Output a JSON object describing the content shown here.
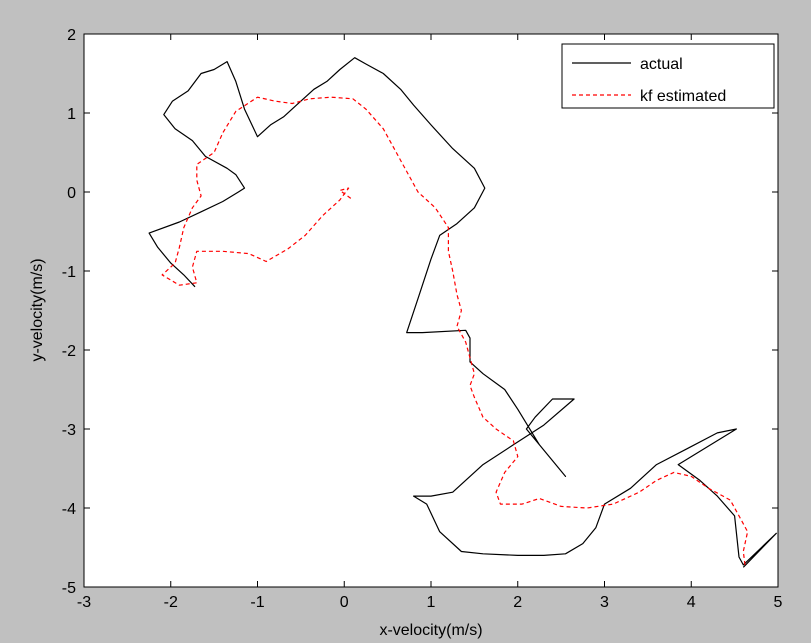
{
  "chart_data": {
    "type": "line",
    "title": "",
    "xlabel": "x-velocity(m/s)",
    "ylabel": "y-velocity(m/s)",
    "xlim": [
      -3,
      5
    ],
    "ylim": [
      -5,
      2
    ],
    "xticks": [
      -3,
      -2,
      -1,
      0,
      1,
      2,
      3,
      4,
      5
    ],
    "yticks": [
      -5,
      -4,
      -3,
      -2,
      -1,
      0,
      1,
      2
    ],
    "xtick_labels": [
      "-3",
      "-2",
      "-1",
      "0",
      "1",
      "2",
      "3",
      "4",
      "5"
    ],
    "ytick_labels": [
      "-5",
      "-4",
      "-3",
      "-2",
      "-1",
      "0",
      "1",
      "2"
    ],
    "grid": false,
    "legend_position": "top-right",
    "background_color": "#c0c0c0",
    "axes_color": "#ffffff",
    "series": [
      {
        "name": "actual",
        "color": "#000000",
        "dash": "solid",
        "points": [
          [
            4.6,
            -4.75
          ],
          [
            4.98,
            -4.32
          ],
          [
            4.6,
            -4.72
          ],
          [
            4.55,
            -4.62
          ],
          [
            4.5,
            -4.1
          ],
          [
            4.3,
            -3.85
          ],
          [
            4.1,
            -3.65
          ],
          [
            3.85,
            -3.45
          ],
          [
            4.52,
            -3.0
          ],
          [
            4.3,
            -3.05
          ],
          [
            3.95,
            -3.25
          ],
          [
            3.6,
            -3.45
          ],
          [
            3.3,
            -3.75
          ],
          [
            3.0,
            -3.95
          ],
          [
            2.9,
            -4.25
          ],
          [
            2.75,
            -4.45
          ],
          [
            2.55,
            -4.58
          ],
          [
            2.3,
            -4.6
          ],
          [
            2.0,
            -4.6
          ],
          [
            1.6,
            -4.58
          ],
          [
            1.35,
            -4.55
          ],
          [
            1.1,
            -4.3
          ],
          [
            0.95,
            -3.95
          ],
          [
            0.8,
            -3.85
          ],
          [
            1.0,
            -3.85
          ],
          [
            1.25,
            -3.8
          ],
          [
            1.6,
            -3.45
          ],
          [
            1.95,
            -3.2
          ],
          [
            2.3,
            -2.95
          ],
          [
            2.65,
            -2.62
          ],
          [
            2.4,
            -2.62
          ],
          [
            2.2,
            -2.85
          ],
          [
            2.1,
            -3.0
          ],
          [
            2.55,
            -3.6
          ],
          [
            2.25,
            -3.2
          ],
          [
            2.0,
            -2.75
          ],
          [
            1.85,
            -2.5
          ],
          [
            1.6,
            -2.3
          ],
          [
            1.45,
            -2.15
          ],
          [
            1.45,
            -1.85
          ],
          [
            1.4,
            -1.75
          ],
          [
            0.9,
            -1.78
          ],
          [
            0.72,
            -1.78
          ],
          [
            0.85,
            -1.35
          ],
          [
            1.0,
            -0.85
          ],
          [
            1.1,
            -0.55
          ],
          [
            1.3,
            -0.4
          ],
          [
            1.5,
            -0.2
          ],
          [
            1.62,
            0.05
          ],
          [
            1.5,
            0.3
          ],
          [
            1.25,
            0.55
          ],
          [
            1.0,
            0.85
          ],
          [
            0.8,
            1.1
          ],
          [
            0.65,
            1.3
          ],
          [
            0.45,
            1.5
          ],
          [
            0.25,
            1.62
          ],
          [
            0.12,
            1.7
          ],
          [
            -0.05,
            1.55
          ],
          [
            -0.2,
            1.4
          ],
          [
            -0.35,
            1.3
          ],
          [
            -0.55,
            1.1
          ],
          [
            -0.7,
            0.95
          ],
          [
            -0.85,
            0.85
          ],
          [
            -1.0,
            0.7
          ],
          [
            -1.15,
            1.05
          ],
          [
            -1.25,
            1.4
          ],
          [
            -1.35,
            1.65
          ],
          [
            -1.5,
            1.55
          ],
          [
            -1.65,
            1.5
          ],
          [
            -1.8,
            1.28
          ],
          [
            -1.98,
            1.15
          ],
          [
            -2.08,
            0.98
          ],
          [
            -1.95,
            0.8
          ],
          [
            -1.75,
            0.65
          ],
          [
            -1.6,
            0.45
          ],
          [
            -1.35,
            0.3
          ],
          [
            -1.25,
            0.22
          ],
          [
            -1.15,
            0.05
          ],
          [
            -1.22,
            0.0
          ],
          [
            -1.4,
            -0.12
          ],
          [
            -1.65,
            -0.25
          ],
          [
            -1.9,
            -0.38
          ],
          [
            -2.25,
            -0.52
          ],
          [
            -2.15,
            -0.7
          ],
          [
            -2.0,
            -0.9
          ],
          [
            -1.85,
            -1.05
          ],
          [
            -1.72,
            -1.2
          ]
        ]
      },
      {
        "name": "kf estimated",
        "color": "#ff0000",
        "dash": "dashed",
        "points": [
          [
            4.62,
            -4.72
          ],
          [
            4.6,
            -4.55
          ],
          [
            4.65,
            -4.3
          ],
          [
            4.55,
            -4.1
          ],
          [
            4.45,
            -3.9
          ],
          [
            4.2,
            -3.75
          ],
          [
            4.0,
            -3.6
          ],
          [
            3.8,
            -3.55
          ],
          [
            3.6,
            -3.65
          ],
          [
            3.4,
            -3.8
          ],
          [
            3.1,
            -3.95
          ],
          [
            2.8,
            -4.0
          ],
          [
            2.5,
            -3.98
          ],
          [
            2.25,
            -3.88
          ],
          [
            2.05,
            -3.95
          ],
          [
            1.8,
            -3.95
          ],
          [
            1.75,
            -3.8
          ],
          [
            1.85,
            -3.55
          ],
          [
            2.0,
            -3.35
          ],
          [
            1.95,
            -3.15
          ],
          [
            1.75,
            -3.0
          ],
          [
            1.6,
            -2.85
          ],
          [
            1.5,
            -2.6
          ],
          [
            1.45,
            -2.45
          ],
          [
            1.5,
            -2.3
          ],
          [
            1.45,
            -2.1
          ],
          [
            1.4,
            -1.9
          ],
          [
            1.3,
            -1.7
          ],
          [
            1.35,
            -1.5
          ],
          [
            1.3,
            -1.3
          ],
          [
            1.25,
            -1.0
          ],
          [
            1.2,
            -0.75
          ],
          [
            1.2,
            -0.45
          ],
          [
            1.05,
            -0.2
          ],
          [
            0.85,
            0.0
          ],
          [
            0.75,
            0.2
          ],
          [
            0.6,
            0.5
          ],
          [
            0.45,
            0.8
          ],
          [
            0.25,
            1.05
          ],
          [
            0.1,
            1.18
          ],
          [
            -0.15,
            1.2
          ],
          [
            -0.4,
            1.18
          ],
          [
            -0.6,
            1.12
          ],
          [
            -0.8,
            1.15
          ],
          [
            -1.0,
            1.2
          ],
          [
            -1.25,
            1.02
          ],
          [
            -1.4,
            0.75
          ],
          [
            -1.5,
            0.5
          ],
          [
            -1.7,
            0.35
          ],
          [
            -1.7,
            0.15
          ],
          [
            -1.65,
            -0.05
          ],
          [
            -1.75,
            -0.2
          ],
          [
            -1.85,
            -0.45
          ],
          [
            -1.9,
            -0.7
          ],
          [
            -1.95,
            -0.9
          ],
          [
            -2.1,
            -1.05
          ],
          [
            -1.9,
            -1.18
          ],
          [
            -1.7,
            -1.15
          ],
          [
            -1.75,
            -0.95
          ],
          [
            -1.7,
            -0.75
          ],
          [
            -1.4,
            -0.75
          ],
          [
            -1.1,
            -0.78
          ],
          [
            -0.9,
            -0.88
          ],
          [
            -0.65,
            -0.72
          ],
          [
            -0.45,
            -0.55
          ],
          [
            -0.25,
            -0.3
          ],
          [
            -0.05,
            -0.1
          ],
          [
            0.05,
            0.05
          ],
          [
            -0.05,
            0.02
          ],
          [
            0.1,
            -0.1
          ]
        ]
      }
    ]
  }
}
